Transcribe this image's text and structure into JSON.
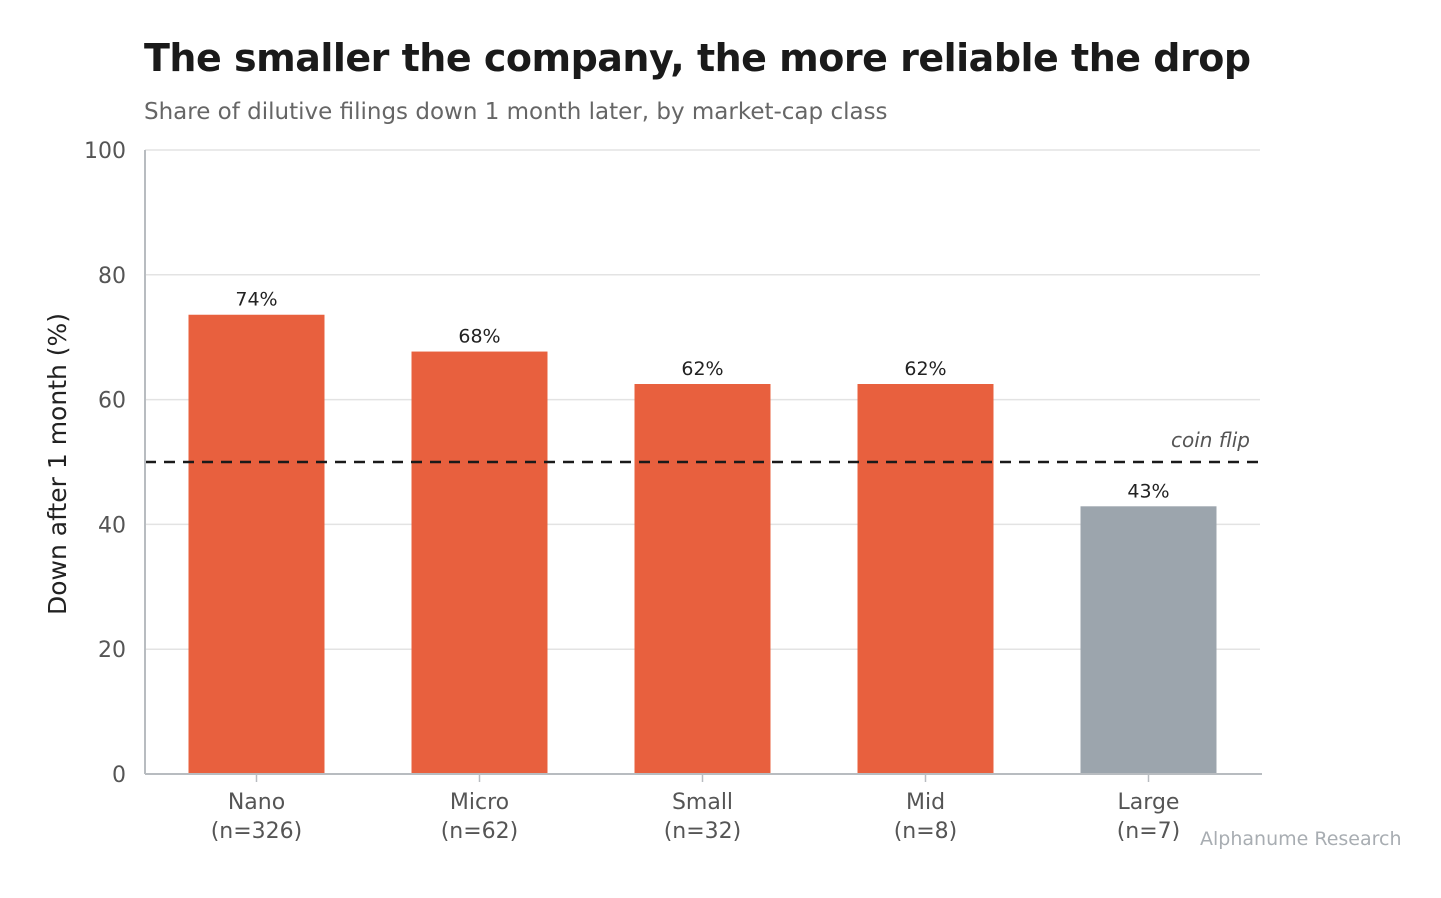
{
  "header": {
    "title": "The smaller the company, the more reliable the drop",
    "subtitle": "Share of dilutive filings down 1 month later, by market-cap class"
  },
  "watermark": "Alphanume Research",
  "colors": {
    "highlight": "#e8603e",
    "muted": "#9ca5ad",
    "grid": "#e3e3e3",
    "axis": "#b8bcc0",
    "reference_line": "#1a1a1a"
  },
  "chart_data": {
    "type": "bar",
    "title": "The smaller the company, the more reliable the drop",
    "subtitle": "Share of dilutive filings down 1 month later, by market-cap class",
    "xlabel": "",
    "ylabel": "Down after 1 month (%)",
    "ylim": [
      0,
      100
    ],
    "yticks": [
      0,
      20,
      40,
      60,
      80,
      100
    ],
    "grid": true,
    "categories": [
      "Nano",
      "Micro",
      "Small",
      "Mid",
      "Large"
    ],
    "sample_sizes": [
      "(n=326)",
      "(n=62)",
      "(n=32)",
      "(n=8)",
      "(n=7)"
    ],
    "values": [
      73.6,
      67.7,
      62.5,
      62.5,
      42.9
    ],
    "data_labels": [
      "74%",
      "68%",
      "62%",
      "62%",
      "43%"
    ],
    "bar_colors": [
      "#e8603e",
      "#e8603e",
      "#e8603e",
      "#e8603e",
      "#9ca5ad"
    ],
    "reference_line": {
      "value": 50,
      "label": "coin flip",
      "style": "dashed"
    }
  }
}
